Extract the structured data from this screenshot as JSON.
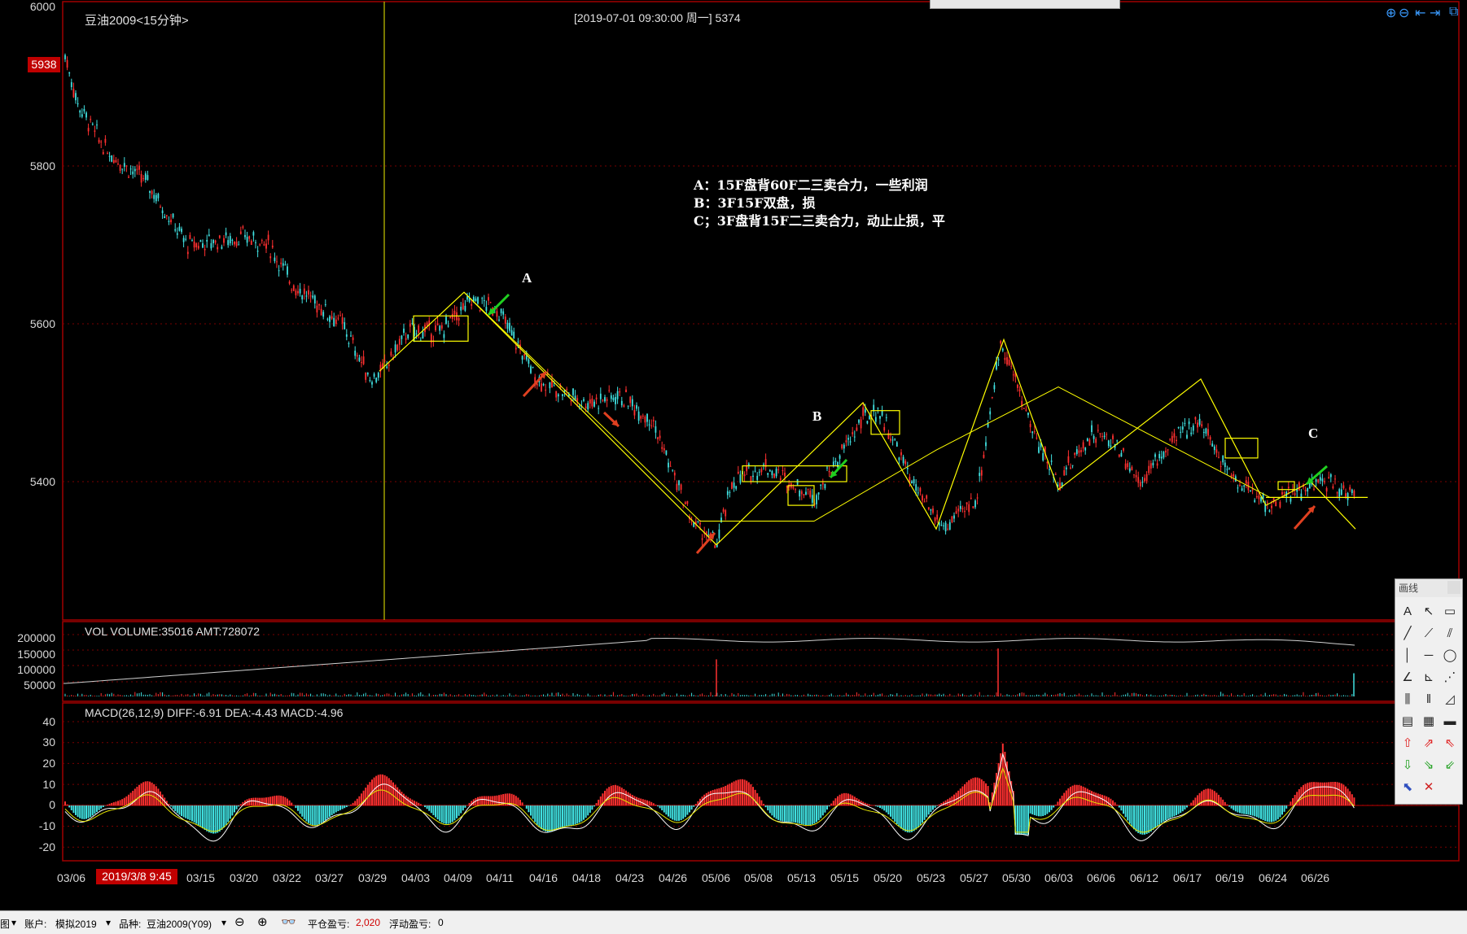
{
  "chart": {
    "title": "豆油2009<15分钟>",
    "cursor_info": "[2019-07-01  09:30:00 周一]   5374",
    "current_price": "5938",
    "y_ticks": [
      "6000",
      "5800",
      "5600",
      "5400"
    ],
    "vol_header": "VOL  VOLUME:35016 AMT:728072",
    "vol_ticks": [
      "200000",
      "150000",
      "100000",
      "50000"
    ],
    "macd_header": "MACD(26,12,9)  DIFF:-6.91 DEA:-4.43 MACD:-4.96",
    "macd_ticks": [
      "40",
      "30",
      "20",
      "10",
      "0",
      "-10",
      "-20"
    ],
    "x_ticks": [
      "03/06",
      "03/15",
      "03/20",
      "03/22",
      "03/27",
      "03/29",
      "04/03",
      "04/09",
      "04/11",
      "04/16",
      "04/18",
      "04/23",
      "04/26",
      "05/06",
      "05/08",
      "05/13",
      "05/15",
      "05/20",
      "05/23",
      "05/27",
      "05/30",
      "06/03",
      "06/06",
      "06/12",
      "06/17",
      "06/19",
      "06/24",
      "06/26"
    ],
    "selected_date": "2019/3/8 9:45"
  },
  "annotations": {
    "line_a": "A：15F盘背60F二三卖合力，一些利润",
    "line_b": "B：3F15F双盘，损",
    "line_c": "C；3F盘背15F二三卖合力，动止止损，平",
    "label_a": "A",
    "label_b": "B",
    "label_c": "C"
  },
  "palette": {
    "title": "画线",
    "icons": [
      "text-tool-icon",
      "arrow-tool-icon",
      "rect-tool-icon",
      "line-tool-icon",
      "ray-tool-icon",
      "parallel-tool-icon",
      "vline-tool-icon",
      "hline-tool-icon",
      "ellipse-tool-icon",
      "angle-tool-icon",
      "angle2-tool-icon",
      "fan-tool-icon",
      "gann-tool-icon",
      "cycle-tool-icon",
      "fib-tool-icon",
      "note-tool-icon",
      "note2-tool-icon",
      "ruler-tool-icon",
      "up-arrow-icon",
      "up-right-arrow-icon",
      "up-left-arrow-icon",
      "down-arrow-icon",
      "down-right-arrow-icon",
      "down-left-arrow-icon",
      "select-icon",
      "delete-icon"
    ]
  },
  "status": {
    "menu_stub": "图",
    "account_label": "账户:",
    "account_value": "模拟2019",
    "variety_label": "品种:",
    "variety_value": "豆油2009(Y09)",
    "close_pnl_label": "平仓盈亏:",
    "close_pnl_value": "2,020",
    "float_pnl_label": "浮动盈亏:",
    "float_pnl_value": "0"
  },
  "colors": {
    "up": "#ff3030",
    "down": "#40e0e0",
    "zigzag": "#ffff00",
    "pivot_box": "#ffff00",
    "grid": "#7a0000"
  }
}
